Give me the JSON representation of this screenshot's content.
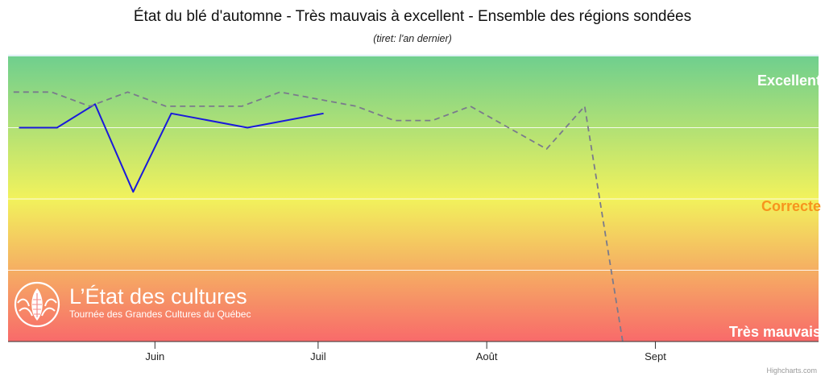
{
  "chart_data": {
    "type": "line",
    "title": "État du blé d'automne - Très mauvais à excellent - Ensemble des régions sondées",
    "subtitle": "(tiret: l'an dernier)",
    "xlabel": "",
    "ylabel": "",
    "x_axis": {
      "type": "datetime",
      "ticks": [
        {
          "label": "Juin",
          "date": "06-01"
        },
        {
          "label": "Juil",
          "date": "07-01"
        },
        {
          "label": "Août",
          "date": "08-01"
        },
        {
          "label": "Sept",
          "date": "09-01"
        }
      ],
      "range": [
        "05-05",
        "10-01"
      ]
    },
    "y_axis": {
      "range": [
        0,
        4
      ],
      "grid": true,
      "bands": [
        {
          "label": "Excellent",
          "value": 4,
          "color": "#ffffff"
        },
        {
          "label": "Correcte",
          "value": 2,
          "color": "#f7941d"
        },
        {
          "label": "Très mauvais",
          "value": 0,
          "color": "#ffffff"
        }
      ]
    },
    "series": [
      {
        "style": "solid",
        "color": "#1a1adb",
        "points": [
          {
            "x": "05-07",
            "y": 3.0
          },
          {
            "x": "05-14",
            "y": 3.0
          },
          {
            "x": "05-21",
            "y": 3.33
          },
          {
            "x": "05-28",
            "y": 2.1
          },
          {
            "x": "06-04",
            "y": 3.2
          },
          {
            "x": "06-18",
            "y": 3.0
          },
          {
            "x": "07-02",
            "y": 3.2
          }
        ]
      },
      {
        "style": "dashed",
        "color": "#7a7a8c",
        "points": [
          {
            "x": "05-06",
            "y": 3.5
          },
          {
            "x": "05-13",
            "y": 3.5
          },
          {
            "x": "05-20",
            "y": 3.3
          },
          {
            "x": "05-27",
            "y": 3.5
          },
          {
            "x": "06-03",
            "y": 3.3
          },
          {
            "x": "06-17",
            "y": 3.3
          },
          {
            "x": "06-24",
            "y": 3.5
          },
          {
            "x": "07-01",
            "y": 3.4
          },
          {
            "x": "07-08",
            "y": 3.3
          },
          {
            "x": "07-15",
            "y": 3.1
          },
          {
            "x": "07-22",
            "y": 3.1
          },
          {
            "x": "07-29",
            "y": 3.3
          },
          {
            "x": "08-05",
            "y": 3.0
          },
          {
            "x": "08-12",
            "y": 2.7
          },
          {
            "x": "08-19",
            "y": 3.3
          },
          {
            "x": "08-26",
            "y": 0.0
          }
        ]
      }
    ],
    "background": {
      "top_color": "#6fcf8e",
      "middle_color": "#f2f25c",
      "bottom_color": "#f86a6a"
    }
  },
  "watermark": {
    "title": "L’État des cultures",
    "subtitle": "Tournée des Grandes Cultures du Québec"
  },
  "credits": "Highcharts.com"
}
